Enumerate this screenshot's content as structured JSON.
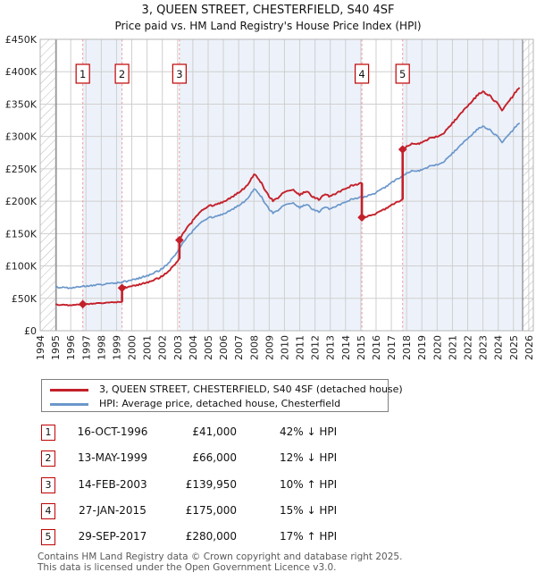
{
  "page": {
    "title": "3, QUEEN STREET, CHESTERFIELD, S40 4SF",
    "subtitle": "Price paid vs. HM Land Registry's House Price Index (HPI)"
  },
  "chart_data": {
    "type": "line",
    "title": "3, QUEEN STREET, CHESTERFIELD, S40 4SF",
    "subtitle": "Price paid vs. HM Land Registry's House Price Index (HPI)",
    "x_range": [
      1994,
      2026.3
    ],
    "y_range_gbp": [
      0,
      450000
    ],
    "y_tick_labels": [
      "£0",
      "£50K",
      "£100K",
      "£150K",
      "£200K",
      "£250K",
      "£300K",
      "£350K",
      "£400K",
      "£450K"
    ],
    "x_tick_years": {
      "from": 1994,
      "to": 2026
    },
    "grid": true,
    "legend_position": "below",
    "hatch_regions_years": [
      [
        1994,
        1995.05
      ],
      [
        2025.6,
        2026.3
      ]
    ],
    "colors": {
      "price_line": "#c4202a",
      "hpi_line": "#6b97cb",
      "ownership_band": "#edf2fa",
      "grid": "#cfcfcf",
      "transaction_dash": "#f19999",
      "marker_box_border": "#c00000",
      "hatch_line": "#b8b8c0",
      "data_edge_line": "#6e6e6e",
      "plot_border": "#b5b5b5"
    },
    "series": [
      {
        "name": "3, QUEEN STREET, CHESTERFIELD, S40 4SF (detached house)",
        "role": "price-paid-scaled",
        "color": "#c4202a"
      },
      {
        "name": "HPI: Average price, detached house, Chesterfield",
        "role": "hpi",
        "color": "#6b97cb",
        "points_year_gbpk": [
          [
            1995,
            68
          ],
          [
            1995.25,
            67.3
          ],
          [
            1995.5,
            66.8
          ],
          [
            1995.75,
            66.3
          ],
          [
            1996,
            66
          ],
          [
            1996.25,
            66.4
          ],
          [
            1996.5,
            67.2
          ],
          [
            1996.75,
            68.5
          ],
          [
            1997,
            69.3
          ],
          [
            1997.25,
            69.8
          ],
          [
            1997.5,
            70.3
          ],
          [
            1997.75,
            70.8
          ],
          [
            1998,
            71.3
          ],
          [
            1998.25,
            71.8
          ],
          [
            1998.5,
            72.3
          ],
          [
            1998.75,
            72.8
          ],
          [
            1999,
            73.5
          ],
          [
            1999.25,
            74.6
          ],
          [
            1999.5,
            75.8
          ],
          [
            1999.75,
            76.9
          ],
          [
            2000,
            78.5
          ],
          [
            2000.25,
            80
          ],
          [
            2000.5,
            81.5
          ],
          [
            2000.75,
            83.2
          ],
          [
            2001,
            85
          ],
          [
            2001.25,
            87.2
          ],
          [
            2001.5,
            89.6
          ],
          [
            2001.75,
            92.5
          ],
          [
            2002,
            96.5
          ],
          [
            2002.25,
            101.5
          ],
          [
            2002.5,
            107.5
          ],
          [
            2002.75,
            114.5
          ],
          [
            2003,
            122
          ],
          [
            2003.25,
            132
          ],
          [
            2003.5,
            140
          ],
          [
            2003.75,
            147.5
          ],
          [
            2004,
            154
          ],
          [
            2004.25,
            160.5
          ],
          [
            2004.5,
            166
          ],
          [
            2004.75,
            170.5
          ],
          [
            2005,
            173.5
          ],
          [
            2005.25,
            175.5
          ],
          [
            2005.5,
            177
          ],
          [
            2005.75,
            178.5
          ],
          [
            2006,
            180.5
          ],
          [
            2006.25,
            183
          ],
          [
            2006.5,
            186
          ],
          [
            2006.75,
            189.5
          ],
          [
            2007,
            193
          ],
          [
            2007.25,
            197.5
          ],
          [
            2007.5,
            202.5
          ],
          [
            2007.75,
            209
          ],
          [
            2008,
            219
          ],
          [
            2008.25,
            214
          ],
          [
            2008.5,
            206
          ],
          [
            2008.75,
            196
          ],
          [
            2009,
            188
          ],
          [
            2009.25,
            181.5
          ],
          [
            2009.5,
            185
          ],
          [
            2009.75,
            189.5
          ],
          [
            2010,
            193.5
          ],
          [
            2010.25,
            196.5
          ],
          [
            2010.5,
            198
          ],
          [
            2010.75,
            193.5
          ],
          [
            2011,
            190.5
          ],
          [
            2011.25,
            193
          ],
          [
            2011.5,
            195
          ],
          [
            2011.75,
            188.5
          ],
          [
            2012,
            185.5
          ],
          [
            2012.25,
            183.5
          ],
          [
            2012.5,
            188
          ],
          [
            2012.75,
            191
          ],
          [
            2013,
            187.5
          ],
          [
            2013.25,
            190.5
          ],
          [
            2013.5,
            193.5
          ],
          [
            2013.75,
            196.5
          ],
          [
            2014,
            199
          ],
          [
            2014.25,
            201.5
          ],
          [
            2014.5,
            203.5
          ],
          [
            2014.75,
            205
          ],
          [
            2015,
            206
          ],
          [
            2015.25,
            207
          ],
          [
            2015.5,
            208.5
          ],
          [
            2015.75,
            210.5
          ],
          [
            2016,
            213.5
          ],
          [
            2016.25,
            216.5
          ],
          [
            2016.5,
            220
          ],
          [
            2016.75,
            224
          ],
          [
            2017,
            228
          ],
          [
            2017.25,
            232
          ],
          [
            2017.5,
            236
          ],
          [
            2017.75,
            239.5
          ],
          [
            2018,
            243
          ],
          [
            2018.25,
            246
          ],
          [
            2018.5,
            248
          ],
          [
            2018.75,
            246.5
          ],
          [
            2019,
            249
          ],
          [
            2019.25,
            251.5
          ],
          [
            2019.5,
            253.5
          ],
          [
            2019.75,
            255
          ],
          [
            2020,
            257
          ],
          [
            2020.25,
            258
          ],
          [
            2020.5,
            262
          ],
          [
            2020.75,
            268
          ],
          [
            2021,
            274
          ],
          [
            2021.25,
            280
          ],
          [
            2021.5,
            286
          ],
          [
            2021.75,
            291
          ],
          [
            2022,
            296
          ],
          [
            2022.25,
            302
          ],
          [
            2022.5,
            308
          ],
          [
            2022.75,
            312.5
          ],
          [
            2023,
            315
          ],
          [
            2023.25,
            313
          ],
          [
            2023.5,
            309
          ],
          [
            2023.75,
            304
          ],
          [
            2024,
            299
          ],
          [
            2024.25,
            291.5
          ],
          [
            2024.5,
            297.5
          ],
          [
            2024.75,
            304.5
          ],
          [
            2025,
            311
          ],
          [
            2025.25,
            317.5
          ],
          [
            2025.4,
            321
          ]
        ]
      }
    ],
    "transactions": [
      {
        "num": 1,
        "date": "16-OCT-1996",
        "year": 1996.79,
        "price_gbp": 41000,
        "price_label": "£41,000",
        "vs_hpi": "42% ↓ HPI"
      },
      {
        "num": 2,
        "date": "13-MAY-1999",
        "year": 1999.36,
        "price_gbp": 66000,
        "price_label": "£66,000",
        "vs_hpi": "12% ↓ HPI"
      },
      {
        "num": 3,
        "date": "14-FEB-2003",
        "year": 2003.12,
        "price_gbp": 139950,
        "price_label": "£139,950",
        "vs_hpi": "10% ↑ HPI"
      },
      {
        "num": 4,
        "date": "27-JAN-2015",
        "year": 2015.07,
        "price_gbp": 175000,
        "price_label": "£175,000",
        "vs_hpi": "15% ↓ HPI"
      },
      {
        "num": 5,
        "date": "29-SEP-2017",
        "year": 2017.74,
        "price_gbp": 280000,
        "price_label": "£280,000",
        "vs_hpi": "17% ↑ HPI"
      }
    ]
  },
  "footer": {
    "line1": "Contains HM Land Registry data © Crown copyright and database right 2025.",
    "line2": "This data is licensed under the Open Government Licence v3.0."
  }
}
